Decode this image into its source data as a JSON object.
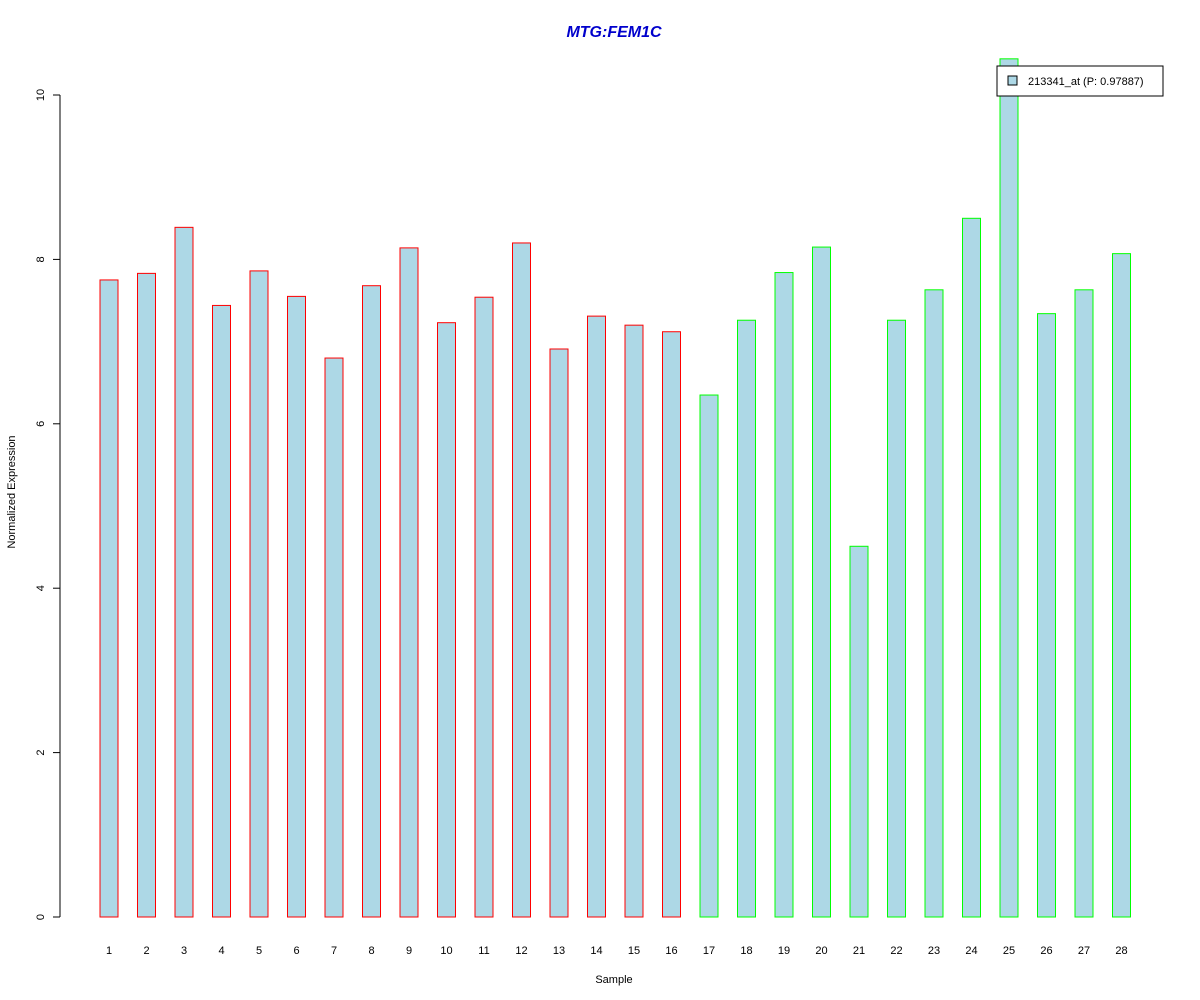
{
  "chart_data": {
    "type": "bar",
    "title": "MTG:FEM1C",
    "xlabel": "Sample",
    "ylabel": "Normalized Expression",
    "categories": [
      "1",
      "2",
      "3",
      "4",
      "5",
      "6",
      "7",
      "8",
      "9",
      "10",
      "11",
      "12",
      "13",
      "14",
      "15",
      "16",
      "17",
      "18",
      "19",
      "20",
      "21",
      "22",
      "23",
      "24",
      "25",
      "26",
      "27",
      "28"
    ],
    "series": [
      {
        "name": "213341_at (P: 0.97887)",
        "values": [
          7.75,
          7.83,
          8.39,
          7.44,
          7.86,
          7.55,
          6.8,
          7.68,
          8.14,
          7.23,
          7.54,
          8.2,
          6.91,
          7.31,
          7.2,
          7.12,
          6.35,
          7.26,
          7.84,
          8.15,
          4.51,
          7.26,
          7.63,
          8.5,
          10.44,
          7.34,
          7.63,
          8.07
        ]
      }
    ],
    "group_boundary_index": 16,
    "ylim": [
      0,
      10
    ],
    "yticks": [
      0,
      2,
      4,
      6,
      8,
      10
    ],
    "legend_position": "top-right",
    "grid": false,
    "colors": {
      "title": "#0000cc",
      "bar_fill": "#add8e6",
      "group1_border": "#ff0000",
      "group2_border": "#00ff00",
      "axis": "#000000"
    }
  }
}
